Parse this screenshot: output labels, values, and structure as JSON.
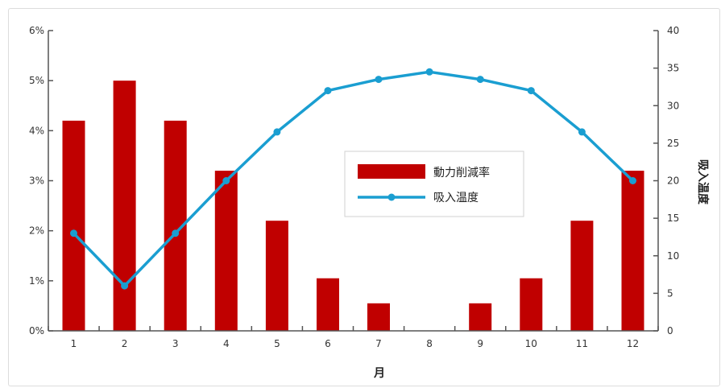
{
  "chart_data": {
    "type": "bar+line",
    "categories": [
      "1",
      "2",
      "3",
      "4",
      "5",
      "6",
      "7",
      "8",
      "9",
      "10",
      "11",
      "12"
    ],
    "xlabel": "月",
    "left_axis": {
      "range": [
        0,
        6
      ],
      "ticks": [
        0,
        1,
        2,
        3,
        4,
        5,
        6
      ],
      "tick_labels": [
        "0%",
        "1%",
        "2%",
        "3%",
        "4%",
        "5%",
        "6%"
      ],
      "label": ""
    },
    "right_axis": {
      "range": [
        0,
        40
      ],
      "ticks": [
        0,
        5,
        10,
        15,
        20,
        25,
        30,
        35,
        40
      ],
      "tick_labels": [
        "0",
        "5",
        "10",
        "15",
        "20",
        "25",
        "30",
        "35",
        "40"
      ],
      "label": "吸入温度"
    },
    "series": [
      {
        "name": "動力削減率",
        "kind": "bar",
        "axis": "left",
        "color": "#c00000",
        "values": [
          4.2,
          5.0,
          4.2,
          3.2,
          2.2,
          1.05,
          0.55,
          0,
          0.55,
          1.05,
          2.2,
          3.2
        ]
      },
      {
        "name": "吸入温度",
        "kind": "line",
        "axis": "right",
        "color": "#1a9ed1",
        "values": [
          13,
          6,
          13,
          20,
          26.5,
          32,
          33.5,
          34.5,
          33.5,
          32,
          26.5,
          20
        ]
      }
    ],
    "legend": {
      "placement": "center-right",
      "entries": [
        "動力削減率",
        "吸入温度"
      ]
    },
    "grid": false
  }
}
